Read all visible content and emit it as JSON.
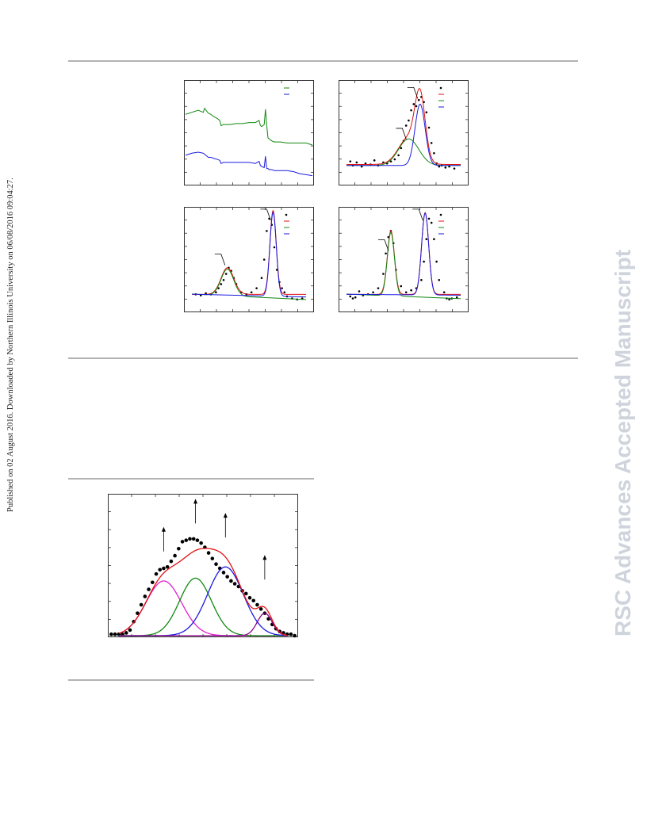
{
  "side_note": "Published on 02 August 2016. Downloaded by Northern Illinois University on 06/08/2016 09:04:27.",
  "watermark": "RSC Advances Accepted Manuscript",
  "colors": {
    "data": "#000000",
    "fit": "#e01010",
    "green": "#118811",
    "blue": "#1a1ae0",
    "magenta": "#e020d0",
    "purple": "#880088",
    "rule": "#b3b3b3"
  },
  "chart_data": [
    {
      "type": "line",
      "xlim": [
        0,
        100
      ],
      "ylim": [
        0,
        100
      ],
      "series": [
        {
          "color": "green",
          "x": [
            0,
            5,
            10,
            14,
            15,
            18,
            20,
            22,
            25,
            27,
            28,
            30,
            35,
            40,
            45,
            50,
            55,
            58,
            59,
            60,
            62,
            63,
            64,
            65,
            66,
            68,
            70,
            75,
            80,
            85,
            90,
            95,
            100
          ],
          "y": [
            68,
            70,
            72,
            70,
            74,
            69,
            68,
            66,
            64,
            62,
            57,
            58,
            58,
            59,
            59,
            60,
            60,
            62,
            57,
            56,
            58,
            73,
            57,
            45,
            44,
            42,
            41,
            41,
            40,
            40,
            40,
            40,
            38
          ]
        },
        {
          "color": "blue",
          "x": [
            0,
            5,
            10,
            14,
            15,
            18,
            20,
            22,
            25,
            27,
            28,
            30,
            35,
            40,
            45,
            50,
            55,
            58,
            59,
            60,
            62,
            63,
            64,
            65,
            66,
            68,
            70,
            75,
            80,
            85,
            90,
            95,
            100
          ],
          "y": [
            28,
            30,
            31,
            30,
            29,
            26,
            26,
            25,
            24,
            23,
            20,
            21,
            21,
            21,
            21,
            21,
            20,
            22,
            18,
            17,
            16,
            27,
            15,
            15,
            14,
            14,
            13,
            13,
            13,
            12,
            10,
            9,
            8
          ]
        }
      ],
      "legend": [
        "green",
        "blue"
      ]
    },
    {
      "type": "line",
      "xlim": [
        0,
        100
      ],
      "ylim": [
        0,
        100
      ],
      "series": [
        {
          "color": "data",
          "style": "points",
          "x": [
            8,
            10,
            13,
            17,
            20,
            24,
            27,
            30,
            34,
            37,
            40,
            43,
            46,
            48,
            50,
            52,
            54,
            56,
            58,
            60,
            62,
            64,
            66,
            68,
            70,
            72,
            74,
            76,
            78,
            80,
            83,
            86,
            90
          ],
          "y": [
            22,
            18,
            21,
            17,
            20,
            19,
            23,
            18,
            21,
            20,
            22,
            24,
            28,
            35,
            42,
            57,
            62,
            72,
            78,
            76,
            82,
            85,
            80,
            70,
            55,
            40,
            30,
            20,
            17,
            18,
            16,
            17,
            15
          ]
        },
        {
          "color": "fit",
          "style": "line",
          "peaks": [
            {
              "c": 54,
              "h": 26,
              "w": 8
            },
            {
              "c": 63,
              "h": 60,
              "w": 4
            }
          ],
          "baseline": 19
        },
        {
          "color": "green",
          "style": "line",
          "peaks": [
            {
              "c": 54,
              "h": 26,
              "w": 8
            }
          ],
          "baseline": 18
        },
        {
          "color": "blue",
          "style": "line",
          "peaks": [
            {
              "c": 63,
              "h": 60,
              "w": 4
            }
          ],
          "baseline": 18
        }
      ],
      "legend": [
        "data",
        "fit",
        "green",
        "blue"
      ],
      "annotations": [
        {
          "x": 63,
          "y": 85
        },
        {
          "x": 54,
          "y": 45
        }
      ]
    },
    {
      "type": "line",
      "xlim": [
        0,
        100
      ],
      "ylim": [
        0,
        100
      ],
      "series": [
        {
          "color": "data",
          "style": "points",
          "x": [
            8,
            12,
            16,
            20,
            24,
            26,
            28,
            30,
            32,
            34,
            36,
            38,
            40,
            44,
            48,
            52,
            56,
            60,
            62,
            64,
            66,
            68,
            70,
            72,
            74,
            76,
            78,
            80,
            84,
            88,
            92
          ],
          "y": [
            16,
            15,
            17,
            16,
            18,
            22,
            26,
            30,
            36,
            42,
            39,
            32,
            26,
            18,
            16,
            18,
            22,
            32,
            50,
            78,
            90,
            84,
            62,
            40,
            28,
            22,
            18,
            14,
            12,
            11,
            12
          ]
        },
        {
          "color": "fit",
          "style": "line",
          "peaks": [
            {
              "c": 33,
              "h": 26,
              "w": 5
            },
            {
              "c": 69,
              "h": 82,
              "w": 2.5
            }
          ],
          "baseline": 16
        },
        {
          "color": "green",
          "style": "line",
          "peaks": [
            {
              "c": 33,
              "h": 26,
              "w": 5
            }
          ],
          "baseline": 16,
          "slope": -0.06
        },
        {
          "color": "blue",
          "style": "line",
          "peaks": [
            {
              "c": 69,
              "h": 82,
              "w": 2.5
            }
          ],
          "baseline": 16,
          "slope": -0.03
        }
      ],
      "legend": [
        "data",
        "fit",
        "green",
        "blue"
      ],
      "annotations": [
        {
          "x": 69,
          "y": 90
        },
        {
          "x": 33,
          "y": 46
        }
      ]
    },
    {
      "type": "line",
      "xlim": [
        0,
        100
      ],
      "ylim": [
        0,
        100
      ],
      "series": [
        {
          "color": "data",
          "style": "points",
          "x": [
            8,
            10,
            12,
            15,
            18,
            22,
            26,
            30,
            34,
            36,
            38,
            40,
            42,
            44,
            48,
            52,
            56,
            60,
            64,
            66,
            68,
            70,
            72,
            74,
            76,
            78,
            82,
            84,
            86,
            88,
            92
          ],
          "y": [
            14,
            12,
            13,
            19,
            15,
            16,
            18,
            22,
            36,
            56,
            72,
            78,
            66,
            40,
            24,
            18,
            20,
            22,
            30,
            48,
            70,
            90,
            86,
            70,
            48,
            30,
            18,
            12,
            11,
            12,
            13
          ]
        },
        {
          "color": "fit",
          "style": "line",
          "peaks": [
            {
              "c": 40,
              "h": 62,
              "w": 2.8
            },
            {
              "c": 67,
              "h": 80,
              "w": 2.8
            }
          ],
          "baseline": 16
        },
        {
          "color": "green",
          "style": "line",
          "peaks": [
            {
              "c": 40,
              "h": 62,
              "w": 2.8
            }
          ],
          "baseline": 16,
          "slope": -0.05
        },
        {
          "color": "blue",
          "style": "line",
          "peaks": [
            {
              "c": 67,
              "h": 80,
              "w": 2.8
            }
          ],
          "baseline": 16,
          "slope": -0.01
        }
      ],
      "legend": [
        "data",
        "fit",
        "green",
        "blue"
      ],
      "annotations": [
        {
          "x": 67,
          "y": 90
        },
        {
          "x": 40,
          "y": 60
        }
      ]
    },
    {
      "type": "line",
      "xlim": [
        0,
        100
      ],
      "ylim": [
        0,
        100
      ],
      "series": [
        {
          "color": "data",
          "style": "points",
          "x": [
            1,
            3,
            5,
            7,
            9,
            11,
            13,
            15,
            17,
            19,
            21,
            23,
            25,
            27,
            29,
            31,
            33,
            35,
            37,
            39,
            41,
            43,
            45,
            47,
            49,
            51,
            53,
            55,
            57,
            59,
            61,
            63,
            65,
            67,
            69,
            71,
            73,
            75,
            77,
            79,
            81,
            83,
            85,
            87,
            89,
            91,
            93,
            95,
            97,
            99
          ],
          "y": [
            1,
            1,
            1,
            1,
            2,
            4,
            10,
            16,
            22,
            28,
            33,
            38,
            44,
            47,
            48,
            49,
            53,
            57,
            62,
            67,
            68,
            69,
            69,
            68,
            66,
            63,
            59,
            55,
            51,
            48,
            45,
            42,
            39,
            37,
            35,
            32,
            30,
            27,
            25,
            22,
            19,
            16,
            12,
            8,
            5,
            3,
            2,
            1,
            1,
            0
          ]
        },
        {
          "color": "magenta",
          "style": "line",
          "peaks": [
            {
              "c": 29,
              "h": 39,
              "w": 9.5
            }
          ],
          "baseline": 0
        },
        {
          "color": "green",
          "style": "line",
          "peaks": [
            {
              "c": 46,
              "h": 41,
              "w": 8.5
            }
          ],
          "baseline": 0
        },
        {
          "color": "blue",
          "style": "line",
          "peaks": [
            {
              "c": 62,
              "h": 49,
              "w": 9.5
            }
          ],
          "baseline": 0
        },
        {
          "color": "purple",
          "style": "line",
          "peaks": [
            {
              "c": 83,
              "h": 16,
              "w": 4
            }
          ],
          "baseline": 0
        },
        {
          "color": "fit",
          "style": "line",
          "peaks": [
            {
              "c": 29,
              "h": 39,
              "w": 9.5
            },
            {
              "c": 46,
              "h": 41,
              "w": 8.5
            },
            {
              "c": 62,
              "h": 49,
              "w": 9.5
            },
            {
              "c": 83,
              "h": 16,
              "w": 4
            }
          ],
          "baseline": 0
        }
      ],
      "annotations": [
        {
          "x": 29,
          "y": 60
        },
        {
          "x": 46,
          "y": 80
        },
        {
          "x": 62,
          "y": 70
        },
        {
          "x": 83,
          "y": 40
        }
      ]
    }
  ]
}
